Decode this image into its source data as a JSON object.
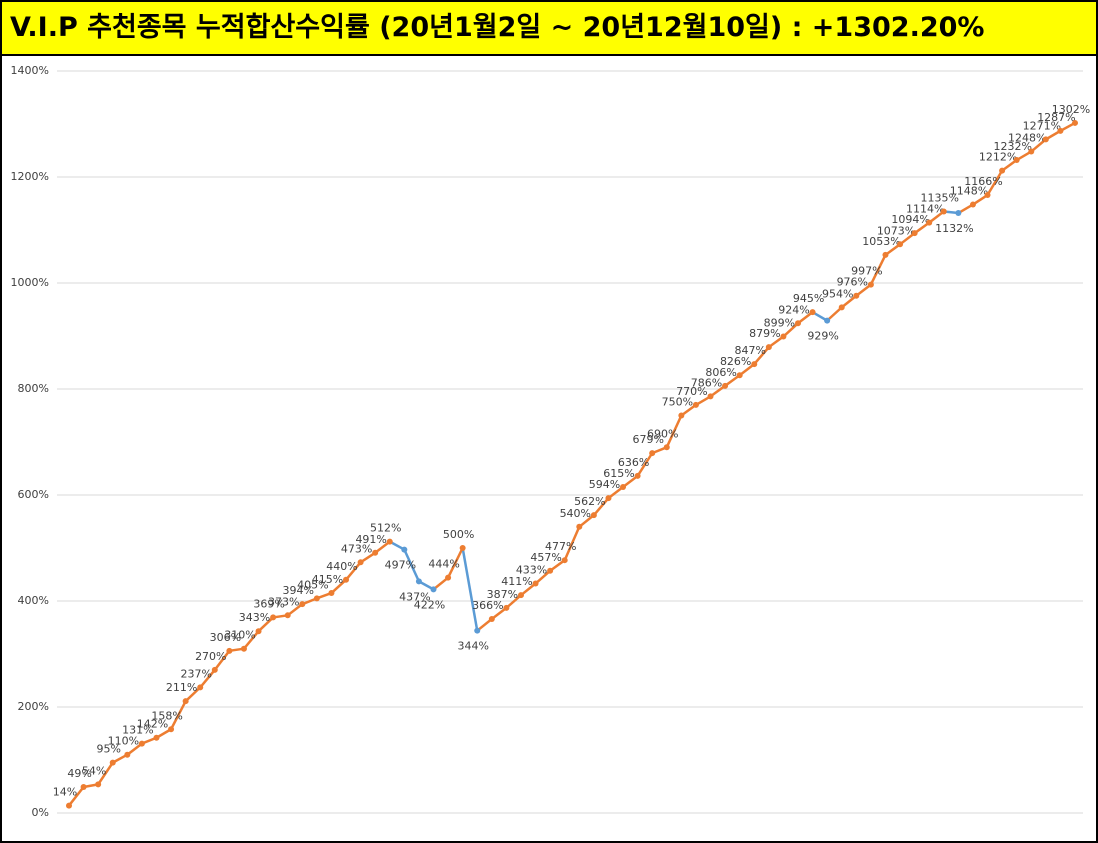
{
  "chart_data": {
    "type": "line",
    "title": "V.I.P 추천종목 누적합산수익률 (20년1월2일 ~ 20년12월10일) : +1302.20%",
    "series": [
      {
        "color": "#ed7d31",
        "decline_color": "#5b9bd5",
        "values": [
          14,
          49,
          54,
          95,
          110,
          131,
          142,
          158,
          211,
          237,
          270,
          306,
          310,
          343,
          369,
          373,
          394,
          405,
          415,
          440,
          473,
          491,
          512,
          497,
          437,
          422,
          444,
          500,
          344,
          366,
          387,
          411,
          433,
          457,
          477,
          540,
          562,
          594,
          615,
          636,
          679,
          690,
          750,
          770,
          786,
          806,
          826,
          847,
          879,
          899,
          924,
          945,
          929,
          954,
          976,
          997,
          1053,
          1073,
          1094,
          1114,
          1135,
          1132,
          1148,
          1166,
          1212,
          1232,
          1248,
          1271,
          1287,
          1302
        ],
        "value_labels": [
          "14%",
          "49%",
          "54%",
          "95%",
          "110%",
          "131%",
          "142%",
          "158%",
          "211%",
          "237%",
          "270%",
          "306%",
          "310%",
          "343%",
          "369%",
          "373%",
          "394%",
          "405%",
          "415%",
          "440%",
          "473%",
          "491%",
          "512%",
          "497%",
          "437%",
          "422%",
          "444%",
          "500%",
          "344%",
          "366%",
          "387%",
          "411%",
          "433%",
          "457%",
          "477%",
          "540%",
          "562%",
          "594%",
          "615%",
          "636%",
          "679%",
          "690%",
          "750%",
          "770%",
          "786%",
          "806%",
          "826%",
          "847%",
          "879%",
          "899%",
          "924%",
          "945%",
          "929%",
          "954%",
          "976%",
          "997%",
          "1053%",
          "1073%",
          "1094%",
          "1114%",
          "1135%",
          "1132%",
          "1148%",
          "1166%",
          "1212%",
          "1232%",
          "1248%",
          "1271%",
          "1287%",
          "1302%"
        ]
      }
    ],
    "ylim": [
      0,
      1400
    ],
    "yticks": [
      {
        "value": 0,
        "label": "0%"
      },
      {
        "value": 200,
        "label": "200%"
      },
      {
        "value": 400,
        "label": "400%"
      },
      {
        "value": 600,
        "label": "600%"
      },
      {
        "value": 800,
        "label": "800%"
      },
      {
        "value": 1000,
        "label": "1000%"
      },
      {
        "value": 1200,
        "label": "1200%"
      },
      {
        "value": 1400,
        "label": "1400%"
      }
    ],
    "grid": true
  }
}
